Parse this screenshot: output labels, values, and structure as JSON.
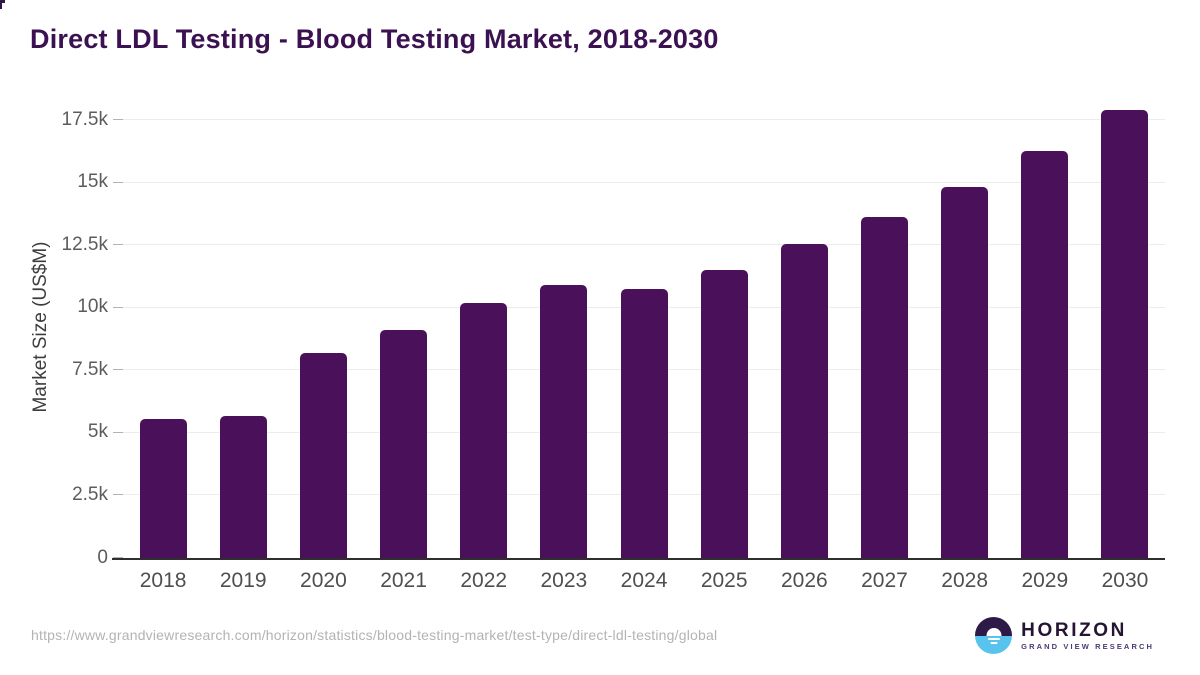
{
  "title": "Direct LDL Testing - Blood Testing Market, 2018-2030",
  "chart_data": {
    "type": "bar",
    "title": "Direct LDL Testing - Blood Testing Market, 2018-2030",
    "xlabel": "",
    "ylabel": "Market Size (US$M)",
    "categories": [
      "2018",
      "2019",
      "2020",
      "2021",
      "2022",
      "2023",
      "2024",
      "2025",
      "2026",
      "2027",
      "2028",
      "2029",
      "2030"
    ],
    "values": [
      5550,
      5680,
      8200,
      9130,
      10180,
      10920,
      10730,
      11500,
      12530,
      13610,
      14820,
      16280,
      17890
    ],
    "ylim": [
      0,
      18500
    ],
    "yticks": [
      {
        "label": "0",
        "value": 0
      },
      {
        "label": "2.5k",
        "value": 2500
      },
      {
        "label": "5k",
        "value": 5000
      },
      {
        "label": "7.5k",
        "value": 7500
      },
      {
        "label": "10k",
        "value": 10000
      },
      {
        "label": "12.5k",
        "value": 12500
      },
      {
        "label": "15k",
        "value": 15000
      },
      {
        "label": "17.5k",
        "value": 17500
      }
    ],
    "grid": true,
    "legend": false,
    "bar_corner_radius": 5
  },
  "colors": {
    "bar": "#4a1059",
    "title": "#3b1152",
    "axis": "#2f2f2f",
    "logo_dark": "#2e1a47",
    "logo_blue": "#58c3ec"
  },
  "footer": {
    "source_url": "https://www.grandviewresearch.com/horizon/statistics/blood-testing-market/test-type/direct-ldl-testing/global",
    "logo": {
      "brand": "HORIZON",
      "sub": "GRAND VIEW RESEARCH"
    }
  }
}
